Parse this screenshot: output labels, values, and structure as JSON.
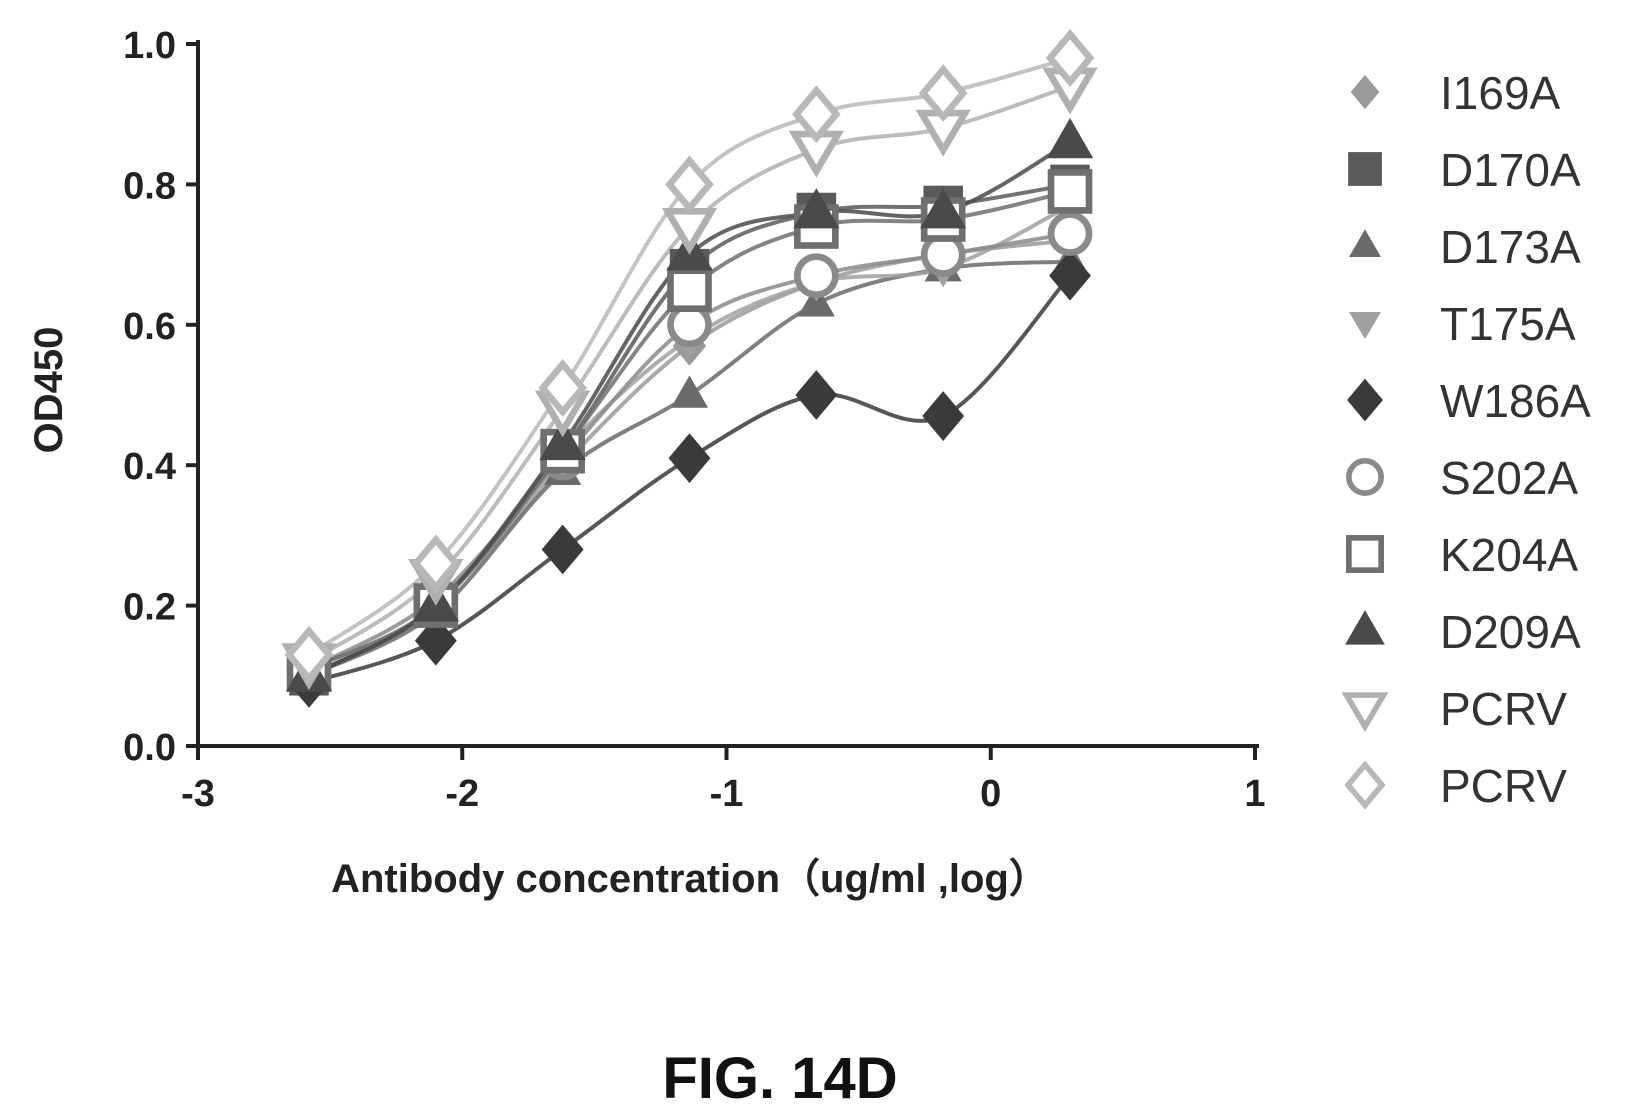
{
  "chart_data": {
    "type": "scatter",
    "figure_caption": "FIG. 14D",
    "xlabel": "Antibody concentration（ug/ml ,log）",
    "ylabel": "OD450",
    "xlim": [
      -3,
      1
    ],
    "ylim": [
      0,
      1.0
    ],
    "x_ticks": [
      -3,
      -2,
      -1,
      0,
      1
    ],
    "x_tick_labels": [
      "-3",
      "-2",
      "-1",
      "0",
      "1"
    ],
    "y_ticks": [
      0,
      0.2,
      0.4,
      0.6,
      0.8,
      1.0
    ],
    "y_tick_labels": [
      "0.0",
      "0.2",
      "0.4",
      "0.6",
      "0.8",
      "1.0"
    ],
    "grid": false,
    "legend_position": "right",
    "x": [
      -2.58,
      -2.1,
      -1.62,
      -1.14,
      -0.66,
      -0.18,
      0.3
    ],
    "series": [
      {
        "name": "I169A",
        "marker": "diamond-small",
        "color": "#9a9a9a",
        "values": [
          0.1,
          0.2,
          0.4,
          0.57,
          0.66,
          0.7,
          0.72
        ]
      },
      {
        "name": "D170A",
        "marker": "square",
        "color": "#5a5a5a",
        "values": [
          0.1,
          0.2,
          0.42,
          0.68,
          0.76,
          0.77,
          0.8
        ]
      },
      {
        "name": "D173A",
        "marker": "triangle-small",
        "color": "#6a6a6a",
        "values": [
          0.1,
          0.19,
          0.39,
          0.5,
          0.63,
          0.68,
          0.69
        ]
      },
      {
        "name": "T175A",
        "marker": "triangle-down-small",
        "color": "#a0a0a0",
        "values": [
          0.11,
          0.2,
          0.42,
          0.58,
          0.66,
          0.68,
          0.77
        ]
      },
      {
        "name": "W186A",
        "marker": "diamond",
        "color": "#3a3a3a",
        "values": [
          0.09,
          0.15,
          0.28,
          0.41,
          0.5,
          0.47,
          0.67
        ]
      },
      {
        "name": "S202A",
        "marker": "circle-open",
        "color": "#8a8a8a",
        "values": [
          0.11,
          0.21,
          0.41,
          0.6,
          0.67,
          0.7,
          0.73
        ]
      },
      {
        "name": "K204A",
        "marker": "square-open",
        "color": "#6f6f6f",
        "values": [
          0.11,
          0.2,
          0.42,
          0.65,
          0.74,
          0.75,
          0.79
        ]
      },
      {
        "name": "D209A",
        "marker": "triangle",
        "color": "#4a4a4a",
        "values": [
          0.1,
          0.2,
          0.43,
          0.7,
          0.76,
          0.76,
          0.86
        ]
      },
      {
        "name": "PCRV",
        "marker": "triangle-down-open",
        "color": "#b0b0b0",
        "values": [
          0.12,
          0.24,
          0.48,
          0.74,
          0.85,
          0.88,
          0.94
        ]
      },
      {
        "name": "PCRV",
        "marker": "diamond-open",
        "color": "#b8b8b8",
        "values": [
          0.13,
          0.26,
          0.51,
          0.8,
          0.9,
          0.93,
          0.98
        ]
      }
    ]
  }
}
